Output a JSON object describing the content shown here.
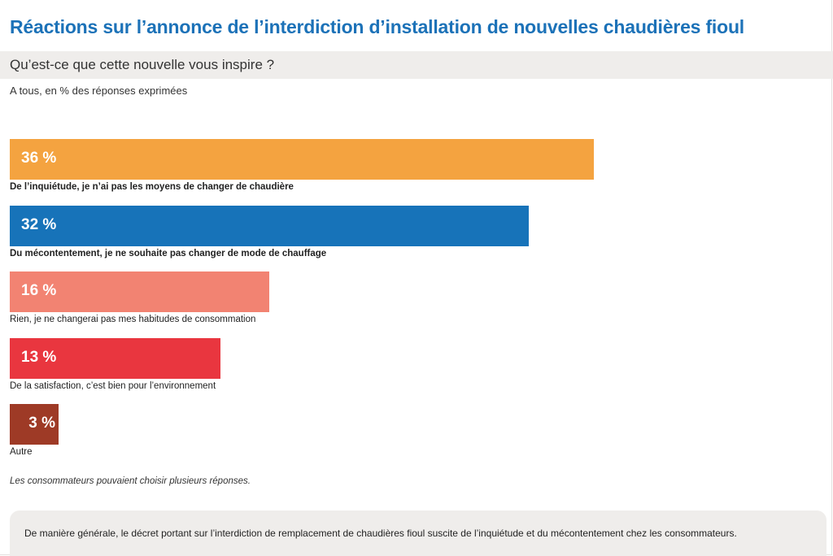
{
  "title": "Réactions sur l’annonce de l’interdiction d’installation de nouvelles chaudières fioul",
  "question": "Qu’est-ce que cette nouvelle vous inspire ?",
  "subtitle": "A tous, en % des réponses exprimées",
  "footnote": "Les consommateurs pouvaient choisir plusieurs réponses.",
  "conclusion": "De manière générale, le décret portant sur l’interdiction de remplacement de chaudières fioul suscite de l’inquiétude et du mécontentement chez les consommateurs.",
  "colors": {
    "title": "#1c72b8",
    "band": "#efedeb"
  },
  "chart_data": {
    "type": "bar",
    "orientation": "horizontal",
    "unit": "%",
    "xlim": [
      0,
      100
    ],
    "categories": [
      "De l’inquiétude, je n’ai pas les moyens de changer de chaudière",
      "Du mécontentement, je ne souhaite pas changer de mode de chauffage",
      "Rien, je ne changerai pas mes habitudes de consommation",
      "De la satisfaction, c’est bien pour l’environnement",
      "Autre"
    ],
    "values": [
      36,
      32,
      16,
      13,
      3
    ],
    "value_labels": [
      "36 %",
      "32 %",
      "16 %",
      "13 %",
      "3 %"
    ],
    "colors": [
      "#f4a340",
      "#1773b9",
      "#f28372",
      "#e9363f",
      "#9e3a26"
    ],
    "bold_labels": [
      true,
      true,
      false,
      false,
      false
    ],
    "grid": false,
    "legend": "none"
  }
}
